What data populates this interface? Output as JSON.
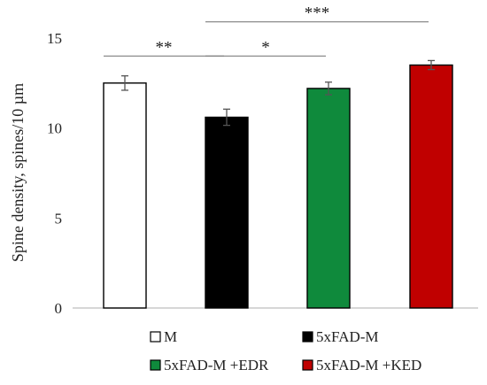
{
  "chart_data": {
    "type": "bar",
    "categories": [
      "M",
      "5xFAD-M",
      "5xFAD-M +EDR",
      "5xFAD-M +KED"
    ],
    "values": [
      12.5,
      10.6,
      12.2,
      13.5
    ],
    "errors": [
      0.4,
      0.45,
      0.35,
      0.25
    ],
    "colors": [
      "#ffffff",
      "#000000",
      "#0f8a3c",
      "#c00000"
    ],
    "ylabel": "Spine density, spines/10 µm",
    "ylim": [
      0,
      15
    ],
    "yticks": [
      "0",
      "5",
      "10",
      "15"
    ],
    "grid": false,
    "legend": {
      "position": "bottom",
      "entries": [
        "M",
        "5xFAD-M",
        "5xFAD-M +EDR",
        "5xFAD-M +KED"
      ]
    },
    "significance": [
      {
        "label": "**",
        "from": 0,
        "to": 1,
        "y": 14.0
      },
      {
        "label": "*",
        "from": 1,
        "to": 2,
        "y": 14.0
      },
      {
        "label": "***",
        "from": 1,
        "to": 3,
        "y": 15.9
      }
    ]
  }
}
